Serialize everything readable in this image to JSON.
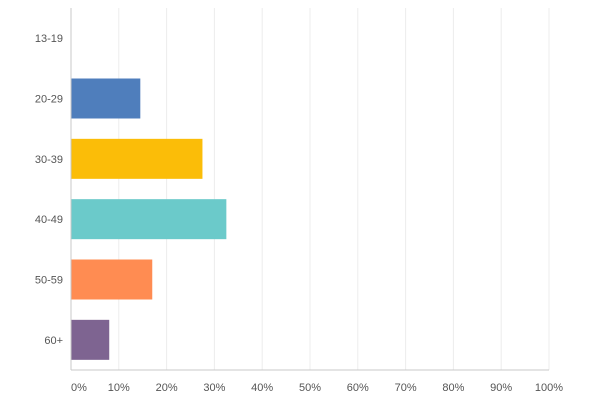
{
  "chart_data": {
    "type": "bar",
    "orientation": "horizontal",
    "categories": [
      "13-19",
      "20-29",
      "30-39",
      "40-49",
      "50-59",
      "60+"
    ],
    "values": [
      0,
      14.5,
      27.5,
      32.5,
      17,
      8
    ],
    "value_unit": "%",
    "colors": [
      "#4f7ebc",
      "#4f7ebc",
      "#fbbd08",
      "#6bcaca",
      "#ff8c52",
      "#7e6491"
    ],
    "xlim": [
      0,
      100
    ],
    "x_ticks": [
      "0%",
      "10%",
      "20%",
      "30%",
      "40%",
      "50%",
      "60%",
      "70%",
      "80%",
      "90%",
      "100%"
    ],
    "grid": true,
    "title": "",
    "xlabel": "",
    "ylabel": ""
  }
}
